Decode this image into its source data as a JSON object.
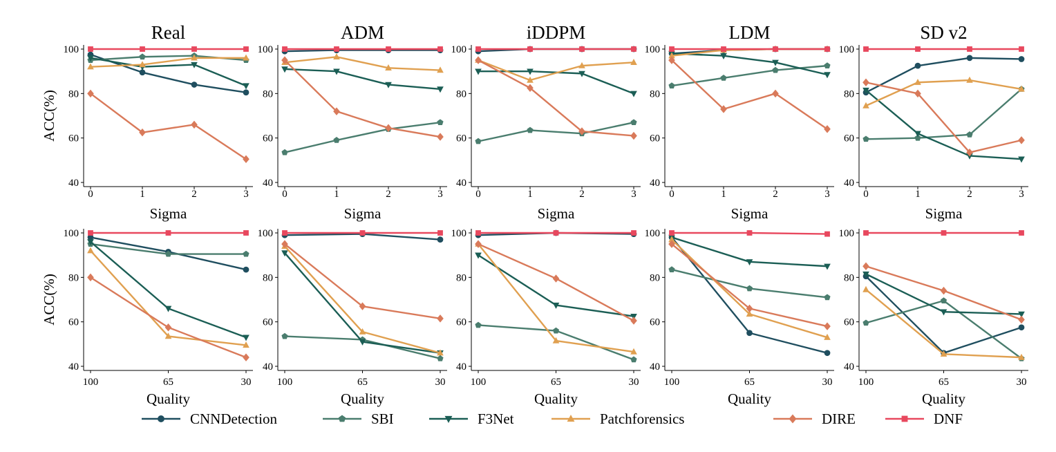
{
  "colors": {
    "CNNDetection": "#1f4e5f",
    "SBI": "#4a7d6e",
    "F3Net": "#1b5e55",
    "Patchforensics": "#e0a050",
    "DIRE": "#d97a5a",
    "DNF": "#e8485e"
  },
  "markers": {
    "CNNDetection": "circle",
    "SBI": "pentagon",
    "F3Net": "triangle-down",
    "Patchforensics": "triangle-up",
    "DIRE": "diamond",
    "DNF": "square"
  },
  "chart_data": {
    "type": "line",
    "ylabel": "ACC(%)",
    "ylim": [
      40,
      100
    ],
    "yticks": [
      "40",
      "60",
      "80",
      "100"
    ],
    "legend_position": "bottom",
    "legend": [
      "CNNDetection",
      "SBI",
      "F3Net",
      "Patchforensics",
      "DIRE",
      "DNF"
    ],
    "panels": [
      {
        "row": 0,
        "title": "Real",
        "xlabel": "Sigma",
        "x": [
          "0",
          "1",
          "2",
          "3"
        ],
        "series": [
          {
            "name": "CNNDetection",
            "values": [
              97.5,
              89.5,
              84,
              80.5
            ]
          },
          {
            "name": "SBI",
            "values": [
              95,
              96.5,
              97,
              95
            ]
          },
          {
            "name": "F3Net",
            "values": [
              96,
              92,
              93,
              83.5
            ]
          },
          {
            "name": "Patchforensics",
            "values": [
              92,
              93,
              96,
              96
            ]
          },
          {
            "name": "DIRE",
            "values": [
              80,
              62.5,
              66,
              50.5
            ]
          },
          {
            "name": "DNF",
            "values": [
              100,
              100,
              100,
              100
            ]
          }
        ]
      },
      {
        "row": 0,
        "title": "ADM",
        "xlabel": "Sigma",
        "x": [
          "0",
          "1",
          "2",
          "3"
        ],
        "series": [
          {
            "name": "CNNDetection",
            "values": [
              99,
              99.5,
              99.5,
              99.5
            ]
          },
          {
            "name": "SBI",
            "values": [
              53.5,
              59,
              64,
              67
            ]
          },
          {
            "name": "F3Net",
            "values": [
              91,
              90,
              84,
              82
            ]
          },
          {
            "name": "Patchforensics",
            "values": [
              94,
              96.5,
              91.5,
              90.5
            ]
          },
          {
            "name": "DIRE",
            "values": [
              95,
              72,
              64.5,
              60.5
            ]
          },
          {
            "name": "DNF",
            "values": [
              100,
              100,
              100,
              100
            ]
          }
        ]
      },
      {
        "row": 0,
        "title": "iDDPM",
        "xlabel": "Sigma",
        "x": [
          "0",
          "1",
          "2",
          "3"
        ],
        "series": [
          {
            "name": "CNNDetection",
            "values": [
              99,
              100,
              100,
              100
            ]
          },
          {
            "name": "SBI",
            "values": [
              58.5,
              63.5,
              62,
              67
            ]
          },
          {
            "name": "F3Net",
            "values": [
              90,
              90,
              89,
              80
            ]
          },
          {
            "name": "Patchforensics",
            "values": [
              95,
              86,
              92.5,
              94
            ]
          },
          {
            "name": "DIRE",
            "values": [
              95,
              82.5,
              63,
              61
            ]
          },
          {
            "name": "DNF",
            "values": [
              100,
              100,
              100,
              100
            ]
          }
        ]
      },
      {
        "row": 0,
        "title": "LDM",
        "xlabel": "Sigma",
        "x": [
          "0",
          "1",
          "2",
          "3"
        ],
        "series": [
          {
            "name": "CNNDetection",
            "values": [
              98,
              99.5,
              100,
              100
            ]
          },
          {
            "name": "SBI",
            "values": [
              83.5,
              87,
              90.5,
              92.5
            ]
          },
          {
            "name": "F3Net",
            "values": [
              98,
              97,
              94,
              88.5
            ]
          },
          {
            "name": "Patchforensics",
            "values": [
              97,
              99.5,
              100,
              100
            ]
          },
          {
            "name": "DIRE",
            "values": [
              95,
              73,
              80,
              64
            ]
          },
          {
            "name": "DNF",
            "values": [
              100,
              100,
              100,
              100
            ]
          }
        ]
      },
      {
        "row": 0,
        "title": "SD v2",
        "xlabel": "Sigma",
        "x": [
          "0",
          "1",
          "2",
          "3"
        ],
        "series": [
          {
            "name": "CNNDetection",
            "values": [
              80.5,
              92.5,
              96,
              95.5
            ]
          },
          {
            "name": "SBI",
            "values": [
              59.5,
              60,
              61.5,
              82
            ]
          },
          {
            "name": "F3Net",
            "values": [
              81.5,
              62,
              52,
              50.5
            ]
          },
          {
            "name": "Patchforensics",
            "values": [
              74.5,
              85,
              86,
              82
            ]
          },
          {
            "name": "DIRE",
            "values": [
              85,
              80,
              53.5,
              59
            ]
          },
          {
            "name": "DNF",
            "values": [
              100,
              100,
              100,
              100
            ]
          }
        ]
      },
      {
        "row": 1,
        "title": "",
        "xlabel": "Quality",
        "x": [
          "100",
          "65",
          "30"
        ],
        "series": [
          {
            "name": "CNNDetection",
            "values": [
              98,
              91.5,
              83.5
            ]
          },
          {
            "name": "SBI",
            "values": [
              95,
              90.5,
              90.5
            ]
          },
          {
            "name": "F3Net",
            "values": [
              96,
              66,
              53
            ]
          },
          {
            "name": "Patchforensics",
            "values": [
              92,
              53.5,
              49.5
            ]
          },
          {
            "name": "DIRE",
            "values": [
              80,
              57.5,
              44
            ]
          },
          {
            "name": "DNF",
            "values": [
              100,
              100,
              100
            ]
          }
        ]
      },
      {
        "row": 1,
        "title": "",
        "xlabel": "Quality",
        "x": [
          "100",
          "65",
          "30"
        ],
        "series": [
          {
            "name": "CNNDetection",
            "values": [
              99,
              99.5,
              97
            ]
          },
          {
            "name": "SBI",
            "values": [
              53.5,
              52,
              43.5
            ]
          },
          {
            "name": "F3Net",
            "values": [
              91,
              51,
              46
            ]
          },
          {
            "name": "Patchforensics",
            "values": [
              94,
              55.5,
              46
            ]
          },
          {
            "name": "DIRE",
            "values": [
              95,
              67,
              61.5
            ]
          },
          {
            "name": "DNF",
            "values": [
              100,
              100,
              100
            ]
          }
        ]
      },
      {
        "row": 1,
        "title": "",
        "xlabel": "Quality",
        "x": [
          "100",
          "65",
          "30"
        ],
        "series": [
          {
            "name": "CNNDetection",
            "values": [
              99,
              100,
              99.5
            ]
          },
          {
            "name": "SBI",
            "values": [
              58.5,
              56,
              43
            ]
          },
          {
            "name": "F3Net",
            "values": [
              90,
              67.5,
              62.5
            ]
          },
          {
            "name": "Patchforensics",
            "values": [
              95,
              51.5,
              46.5
            ]
          },
          {
            "name": "DIRE",
            "values": [
              95,
              79.5,
              60.5
            ]
          },
          {
            "name": "DNF",
            "values": [
              100,
              100,
              100
            ]
          }
        ]
      },
      {
        "row": 1,
        "title": "",
        "xlabel": "Quality",
        "x": [
          "100",
          "65",
          "30"
        ],
        "series": [
          {
            "name": "CNNDetection",
            "values": [
              98,
              55,
              46
            ]
          },
          {
            "name": "SBI",
            "values": [
              83.5,
              75,
              71
            ]
          },
          {
            "name": "F3Net",
            "values": [
              98,
              87,
              85
            ]
          },
          {
            "name": "Patchforensics",
            "values": [
              97,
              63.5,
              53
            ]
          },
          {
            "name": "DIRE",
            "values": [
              95,
              66,
              58
            ]
          },
          {
            "name": "DNF",
            "values": [
              100,
              100,
              99.5
            ]
          }
        ]
      },
      {
        "row": 1,
        "title": "",
        "xlabel": "Quality",
        "x": [
          "100",
          "65",
          "30"
        ],
        "series": [
          {
            "name": "CNNDetection",
            "values": [
              80.5,
              46,
              57.5
            ]
          },
          {
            "name": "SBI",
            "values": [
              59.5,
              69.5,
              43.5
            ]
          },
          {
            "name": "F3Net",
            "values": [
              81.5,
              64.5,
              63.5
            ]
          },
          {
            "name": "Patchforensics",
            "values": [
              74.5,
              45.5,
              44
            ]
          },
          {
            "name": "DIRE",
            "values": [
              85,
              74,
              61
            ]
          },
          {
            "name": "DNF",
            "values": [
              100,
              100,
              100
            ]
          }
        ]
      }
    ]
  }
}
